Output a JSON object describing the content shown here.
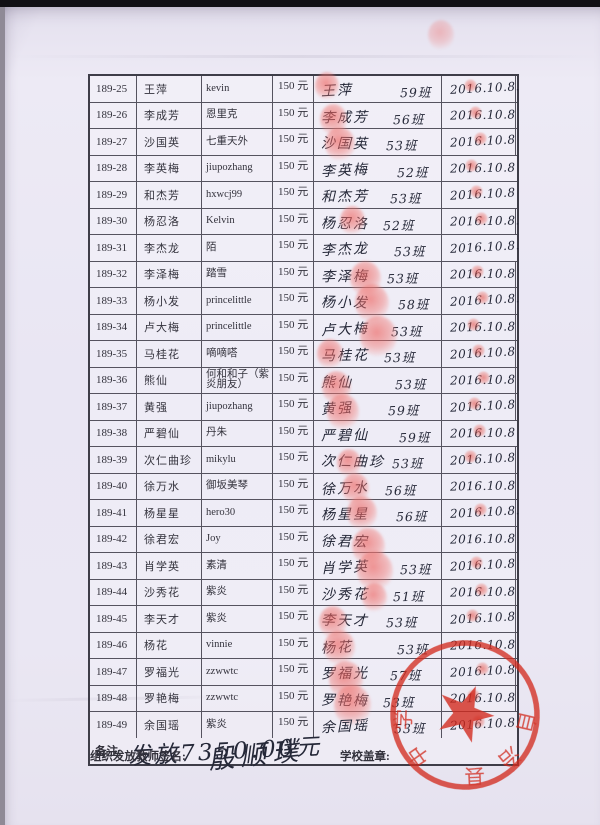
{
  "page": {
    "kind": "scanned paper roster",
    "paper_color": "#e9e6f3",
    "ink_color": "#252838",
    "seal_color": "#d22a1d"
  },
  "table": {
    "rows": [
      {
        "id": "189-25",
        "name": "王萍",
        "nickname": "kevin",
        "amount": "150 元",
        "sig": "王萍",
        "cls": "59班",
        "date": "2016.10.8.",
        "fp": true,
        "dot": true
      },
      {
        "id": "189-26",
        "name": "李成芳",
        "nickname": "恩里克",
        "amount": "150 元",
        "sig": "李成芳",
        "cls": "56班",
        "date": "2016.10.8",
        "fp": true,
        "dot": true
      },
      {
        "id": "189-27",
        "name": "沙国英",
        "nickname": "七重天外",
        "amount": "150 元",
        "sig": "沙国英",
        "cls": "53班",
        "date": "2016.10.8",
        "fp": true,
        "dot": true
      },
      {
        "id": "189-28",
        "name": "李英梅",
        "nickname": "jiupozhang",
        "amount": "150 元",
        "sig": "李英梅",
        "cls": "52班",
        "date": "2016.10.8",
        "fp": false,
        "dot": true
      },
      {
        "id": "189-29",
        "name": "和杰芳",
        "nickname": "hxwcj99",
        "amount": "150 元",
        "sig": "和杰芳",
        "cls": "53班",
        "date": "2016.10.8",
        "fp": false,
        "dot": true
      },
      {
        "id": "189-30",
        "name": "杨忍洛",
        "nickname": "Kelvin",
        "amount": "150 元",
        "sig": "杨忍洛",
        "cls": "52班",
        "date": "2016.10.8.",
        "fp": true,
        "dot": true
      },
      {
        "id": "189-31",
        "name": "李杰龙",
        "nickname": "陌",
        "amount": "150 元",
        "sig": "李杰龙",
        "cls": "53班",
        "date": "2016.10.8.",
        "fp": false,
        "dot": false
      },
      {
        "id": "189-32",
        "name": "李泽梅",
        "nickname": "踏雪",
        "amount": "150 元",
        "sig": "李泽梅",
        "cls": "53班",
        "date": "2016.10.8",
        "fp": true,
        "dot": true
      },
      {
        "id": "189-33",
        "name": "杨小发",
        "nickname": "princelittle",
        "amount": "150 元",
        "sig": "杨小发",
        "cls": "58班",
        "date": "2016.10.8.",
        "fp": true,
        "dot": true
      },
      {
        "id": "189-34",
        "name": "卢大梅",
        "nickname": "princelittle",
        "amount": "150 元",
        "sig": "卢大梅",
        "cls": "53班",
        "date": "2016.10.8",
        "fp": true,
        "dot": true
      },
      {
        "id": "189-35",
        "name": "马桂花",
        "nickname": "嘀嘀嗒",
        "amount": "150 元",
        "sig": "马桂花",
        "cls": "53班",
        "date": "2016.10.8",
        "fp": true,
        "dot": true
      },
      {
        "id": "189-36",
        "name": "熊仙",
        "nickname": "何和和子（紫炎朋友）",
        "amount": "150 元",
        "sig": "熊仙",
        "cls": "53班",
        "date": "2016.10.8",
        "fp": true,
        "dot": true
      },
      {
        "id": "189-37",
        "name": "黄强",
        "nickname": "jiupozhang",
        "amount": "150 元",
        "sig": "黄强",
        "cls": "59班",
        "date": "2016.10.8",
        "fp": true,
        "dot": true
      },
      {
        "id": "189-38",
        "name": "严碧仙",
        "nickname": "丹朱",
        "amount": "150 元",
        "sig": "严碧仙",
        "cls": "59班",
        "date": "2016.10.8",
        "fp": false,
        "dot": true
      },
      {
        "id": "189-39",
        "name": "次仁曲珍",
        "nickname": "mikylu",
        "amount": "150 元",
        "sig": "次仁曲珍",
        "cls": "53班",
        "date": "2016.10.8",
        "fp": true,
        "dot": true
      },
      {
        "id": "189-40",
        "name": "徐万水",
        "nickname": "御坂美琴",
        "amount": "150 元",
        "sig": "徐万水",
        "cls": "56班",
        "date": "2016.10.8",
        "fp": true,
        "dot": false
      },
      {
        "id": "189-41",
        "name": "杨星星",
        "nickname": "hero30",
        "amount": "150 元",
        "sig": "杨星星",
        "cls": "56班",
        "date": "2016.10.8.",
        "fp": true,
        "dot": true
      },
      {
        "id": "189-42",
        "name": "徐君宏",
        "nickname": "Joy",
        "amount": "150 元",
        "sig": "徐君宏",
        "cls": "",
        "date": "2016.10.8",
        "fp": true,
        "dot": false
      },
      {
        "id": "189-43",
        "name": "肖学英",
        "nickname": "素清",
        "amount": "150 元",
        "sig": "肖学英",
        "cls": "53班",
        "date": "2016.10.8",
        "fp": true,
        "dot": true
      },
      {
        "id": "189-44",
        "name": "沙秀花",
        "nickname": "紫炎",
        "amount": "150 元",
        "sig": "沙秀花",
        "cls": "51班",
        "date": "2016.10.8",
        "fp": true,
        "dot": true
      },
      {
        "id": "189-45",
        "name": "李天才",
        "nickname": "紫炎",
        "amount": "150 元",
        "sig": "李天才",
        "cls": "53班",
        "date": "2016.10.8",
        "fp": true,
        "dot": true
      },
      {
        "id": "189-46",
        "name": "杨花",
        "nickname": "vinnie",
        "amount": "150 元",
        "sig": "杨花",
        "cls": "53班",
        "date": "2016.10.8",
        "fp": true,
        "dot": false
      },
      {
        "id": "189-47",
        "name": "罗福光",
        "nickname": "zzwwtc",
        "amount": "150 元",
        "sig": "罗福光",
        "cls": "57班",
        "date": "2016.10.8",
        "fp": true,
        "dot": true
      },
      {
        "id": "189-48",
        "name": "罗艳梅",
        "nickname": "zzwwtc",
        "amount": "150 元",
        "sig": "罗艳梅",
        "cls": "53班",
        "date": "2016.10.8",
        "fp": true,
        "dot": true
      },
      {
        "id": "189-49",
        "name": "余国瑶",
        "nickname": "紫炎",
        "amount": "150 元",
        "sig": "余国瑶",
        "cls": "53班",
        "date": "2016.10.8",
        "fp": false,
        "dot": true
      }
    ]
  },
  "remark": {
    "label": "备注:",
    "value_handwritten": "发放7350.00元"
  },
  "footer": {
    "teacher_label": "组织发放教师签名:",
    "teacher_signature": "殷顺璞",
    "seal_label": "学校盖章:"
  },
  "seal": {
    "legible_fragments": "自治县 中学",
    "star": "★"
  }
}
